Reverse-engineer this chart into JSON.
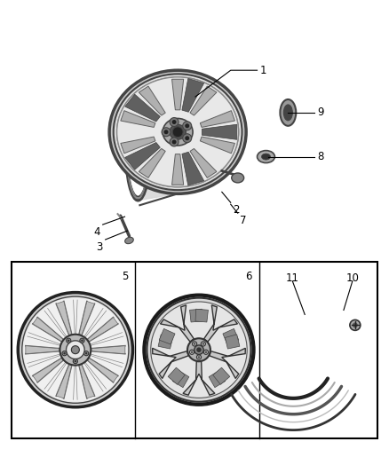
{
  "bg_color": "#ffffff",
  "line_color": "#000000",
  "text_color": "#000000",
  "dark_gray": "#444444",
  "mid_gray": "#888888",
  "light_gray": "#cccccc",
  "very_light": "#eeeeee",
  "spoke_fill": "#bbbbbb",
  "rim_dark": "#333333"
}
